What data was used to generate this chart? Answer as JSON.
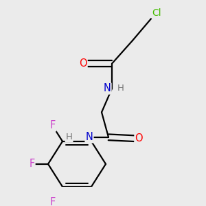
{
  "background_color": "#ebebeb",
  "bond_color": "#000000",
  "lw": 1.6,
  "atom_colors": {
    "Cl": "#44bb00",
    "O": "#ff0000",
    "N": "#0000cc",
    "H": "#777777",
    "F": "#cc44cc",
    "C": "#000000"
  }
}
